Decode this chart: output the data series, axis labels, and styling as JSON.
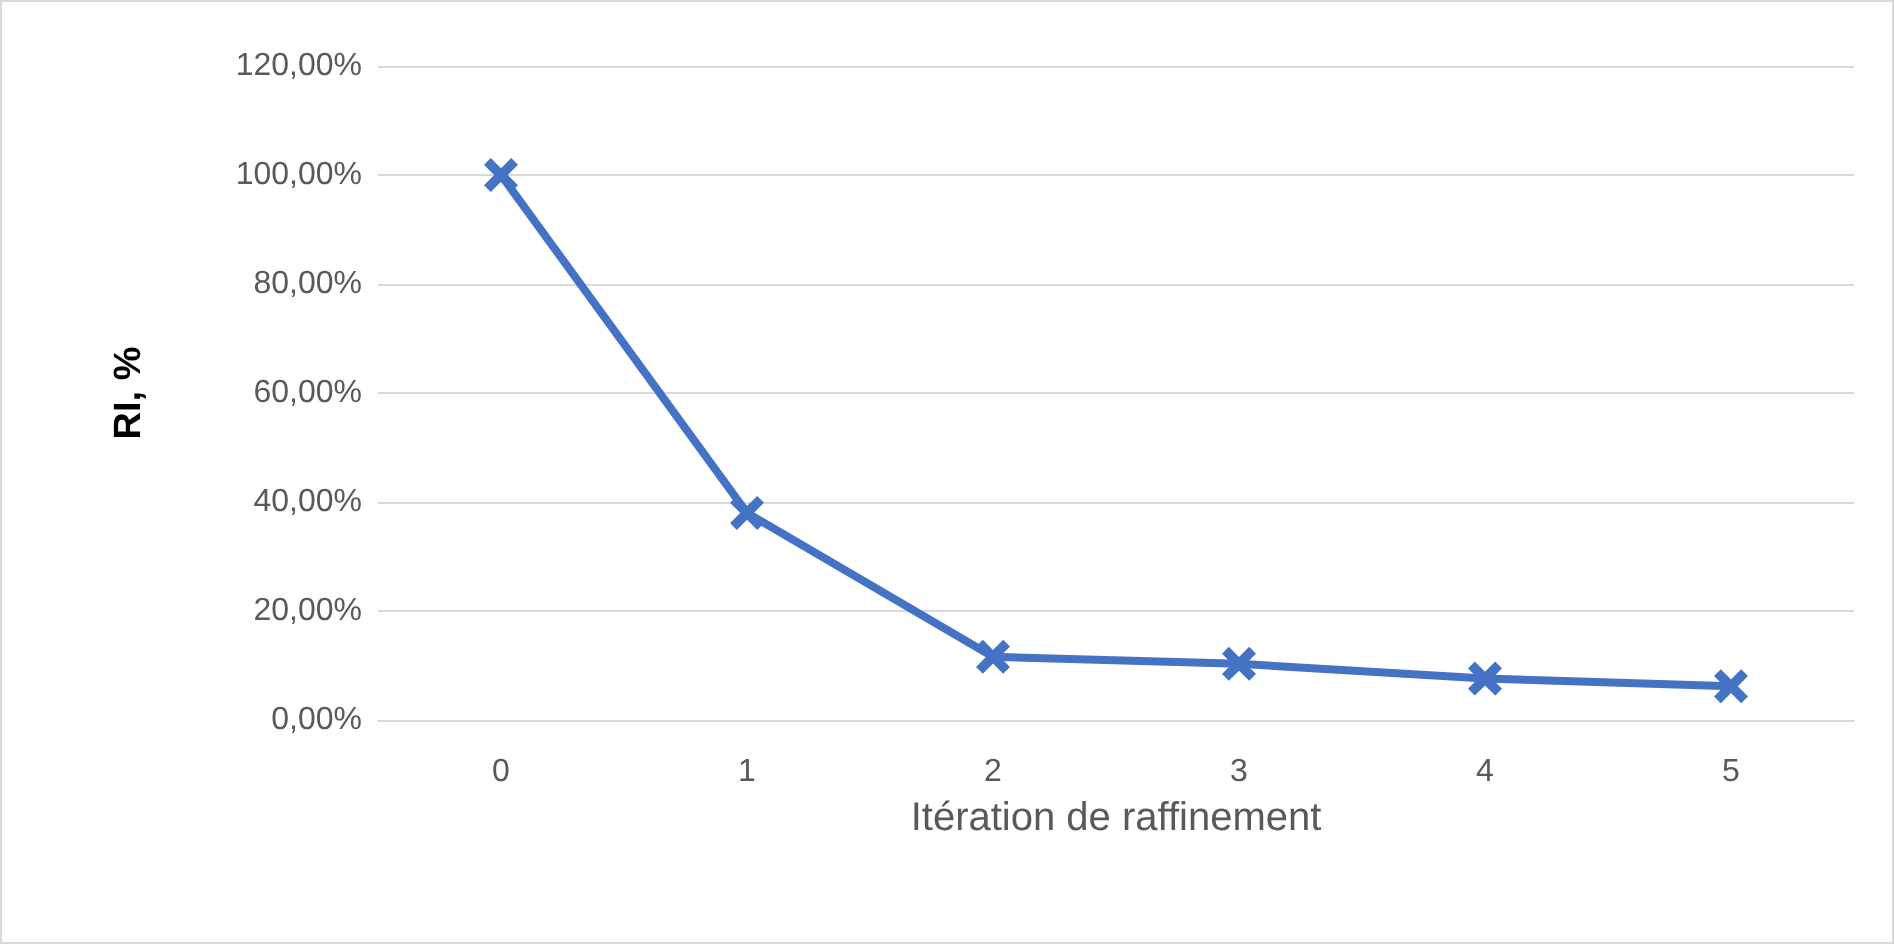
{
  "chart_data": {
    "type": "line",
    "xlabel": "Itération de raffinement",
    "ylabel": "RI, %",
    "categories": [
      "0",
      "1",
      "2",
      "3",
      "4",
      "5"
    ],
    "series": [
      {
        "color": "#4472c4",
        "values": [
          100,
          38,
          11.6,
          10.3,
          7.6,
          6.2
        ]
      }
    ],
    "ylim": [
      0,
      120
    ],
    "yticks": [
      {
        "value": 0,
        "label": "0,00%"
      },
      {
        "value": 20,
        "label": "20,00%"
      },
      {
        "value": 40,
        "label": "40,00%"
      },
      {
        "value": 60,
        "label": "60,00%"
      },
      {
        "value": 80,
        "label": "80,00%"
      },
      {
        "value": 100,
        "label": "100,00%"
      },
      {
        "value": 120,
        "label": "120,00%"
      }
    ],
    "grid": "y",
    "marker": "cross",
    "line_style": "solid"
  }
}
